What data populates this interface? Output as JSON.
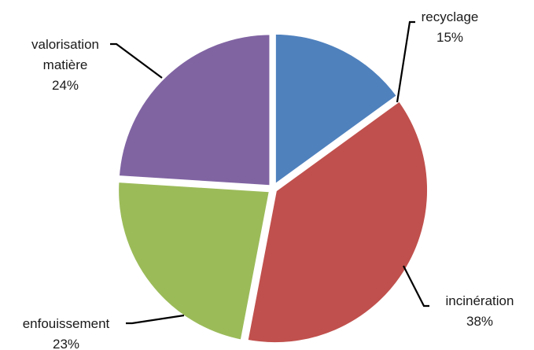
{
  "chart_data": {
    "type": "pie",
    "slices": [
      {
        "label": [
          "recyclage"
        ],
        "value": 15,
        "value_label": "15%",
        "color": "#4f81bd"
      },
      {
        "label": [
          "incinération"
        ],
        "value": 38,
        "value_label": "38%",
        "color": "#c0504d"
      },
      {
        "label": [
          "enfouissement"
        ],
        "value": 23,
        "value_label": "23%",
        "color": "#9bbb59"
      },
      {
        "label": [
          "valorisation",
          "matière"
        ],
        "value": 24,
        "value_label": "24%",
        "color": "#8064a2"
      }
    ],
    "start_angle_deg": 0,
    "direction": "clockwise",
    "legend": "none",
    "data_labels": "outside-with-leader-lines",
    "title": ""
  }
}
